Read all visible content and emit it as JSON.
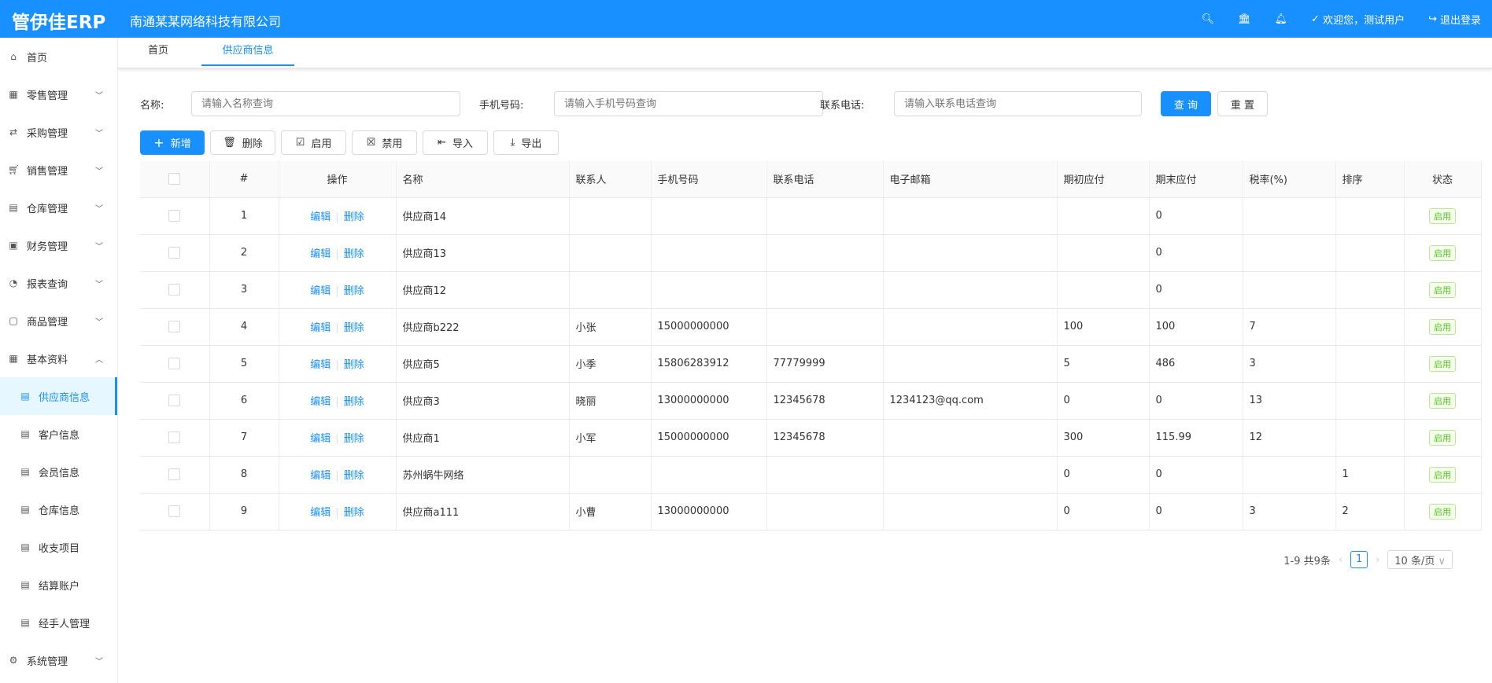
{
  "header": {
    "logo": "管伊佳ERP",
    "company": "南通某某网络科技有限公司",
    "welcome": "欢迎您，测试用户",
    "logout": "退出登录"
  },
  "sidebar": {
    "items": [
      {
        "label": "首页",
        "icon": "home-icon",
        "chevron": ""
      },
      {
        "label": "零售管理",
        "icon": "gift-icon",
        "chevron": "⌄"
      },
      {
        "label": "采购管理",
        "icon": "swap-icon",
        "chevron": "⌄"
      },
      {
        "label": "销售管理",
        "icon": "cart-icon",
        "chevron": "⌄"
      },
      {
        "label": "仓库管理",
        "icon": "warehouse-icon",
        "chevron": "⌄"
      },
      {
        "label": "财务管理",
        "icon": "finance-icon",
        "chevron": "⌄"
      },
      {
        "label": "报表查询",
        "icon": "pie-chart-icon",
        "chevron": "⌄"
      },
      {
        "label": "商品管理",
        "icon": "shopping-bag-icon",
        "chevron": "⌄"
      },
      {
        "label": "基本资料",
        "icon": "appstore-icon",
        "chevron": "⌃"
      }
    ],
    "subitems": [
      "供应商信息",
      "客户信息",
      "会员信息",
      "仓库信息",
      "收支项目",
      "结算账户",
      "经手人管理"
    ],
    "last": {
      "label": "系统管理",
      "icon": "setting-icon",
      "chevron": "⌄"
    }
  },
  "tabs": [
    "首页",
    "供应商信息"
  ],
  "search": {
    "name_label": "名称:",
    "name_ph": "请输入名称查询",
    "phone_label": "手机号码:",
    "phone_ph": "请输入手机号码查询",
    "tel_label": "联系电话:",
    "tel_ph": "请输入联系电话查询",
    "query": "查 询",
    "reset": "重 置"
  },
  "toolbar": {
    "add": "新增",
    "delete": "删除",
    "enable": "启用",
    "disable": "禁用",
    "import": "导入",
    "export": "导出"
  },
  "table": {
    "columns": [
      "#",
      "操作",
      "名称",
      "联系人",
      "手机号码",
      "联系电话",
      "电子邮箱",
      "期初应付",
      "期末应付",
      "税率(%)",
      "排序",
      "状态"
    ],
    "edit": "编辑",
    "del": "删除",
    "rows": [
      [
        "1",
        "供应商14",
        "",
        "",
        "",
        "",
        "",
        "0",
        "",
        "",
        "启用"
      ],
      [
        "2",
        "供应商13",
        "",
        "",
        "",
        "",
        "",
        "0",
        "",
        "",
        "启用"
      ],
      [
        "3",
        "供应商12",
        "",
        "",
        "",
        "",
        "",
        "0",
        "",
        "",
        "启用"
      ],
      [
        "4",
        "供应商b222",
        "小张",
        "15000000000",
        "",
        "",
        "100",
        "100",
        "7",
        "",
        "启用"
      ],
      [
        "5",
        "供应商5",
        "小季",
        "15806283912",
        "77779999",
        "",
        "5",
        "486",
        "3",
        "",
        "启用"
      ],
      [
        "6",
        "供应商3",
        "晓丽",
        "13000000000",
        "12345678",
        "1234123@qq.com",
        "0",
        "0",
        "13",
        "",
        "启用"
      ],
      [
        "7",
        "供应商1",
        "小军",
        "15000000000",
        "12345678",
        "",
        "300",
        "115.99",
        "12",
        "",
        "启用"
      ],
      [
        "8",
        "苏州蜗牛网络",
        "",
        "",
        "",
        "",
        "0",
        "0",
        "",
        "1",
        "启用"
      ],
      [
        "9",
        "供应商a111",
        "小曹",
        "13000000000",
        "",
        "",
        "0",
        "0",
        "3",
        "2",
        "启用"
      ]
    ]
  },
  "pagination": {
    "summary": "1-9 共9条",
    "current": "1",
    "page_size": "10 条/页"
  }
}
